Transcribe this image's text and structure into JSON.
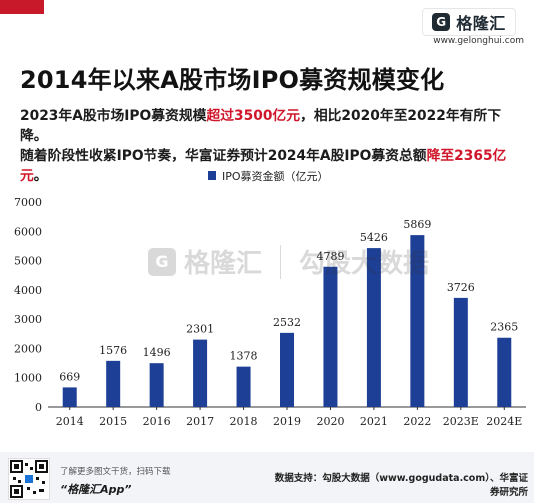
{
  "header": {
    "logo_text": "格隆汇",
    "logo_mark": "G",
    "site_url": "www.gelonghui.com"
  },
  "title": "2014年以来A股市场IPO募资规模变化",
  "subtitle": {
    "line1_a": "2023年A股市场IPO募资规模",
    "line1_hl": "超过3500亿元",
    "line1_b": "，相比2020年至2022年有所下降。",
    "line2_a": "随着阶段性收紧IPO节奏，华富证券预计2024年A股IPO募资总额",
    "line2_hl": "降至2365亿元",
    "line2_b": "。"
  },
  "watermark": {
    "mark": "G",
    "text1": "格隆汇",
    "text2": "勾股大数据"
  },
  "chart_data": {
    "type": "bar",
    "categories": [
      "2014",
      "2015",
      "2016",
      "2017",
      "2018",
      "2019",
      "2020",
      "2021",
      "2022",
      "2023E",
      "2024E"
    ],
    "series": [
      {
        "name": "IPO募资金额（亿元）",
        "values": [
          669,
          1576,
          1496,
          2301,
          1378,
          2532,
          4789,
          5426,
          5869,
          3726,
          2365
        ]
      }
    ],
    "ylim": [
      0,
      7000
    ],
    "yticks": [
      0,
      1000,
      2000,
      3000,
      4000,
      5000,
      6000,
      7000
    ],
    "legend": "top-center",
    "grid": false,
    "color": "#1d3f95"
  },
  "footer": {
    "tip": "了解更多图文干货，扫码下载",
    "app": "“格隆汇App”",
    "source": "数据支持：勾股大数据（www.gogudata.com）、华富证券研究所"
  },
  "colors": {
    "accent_red": "#d0162a",
    "bar_blue": "#1d3f95"
  }
}
